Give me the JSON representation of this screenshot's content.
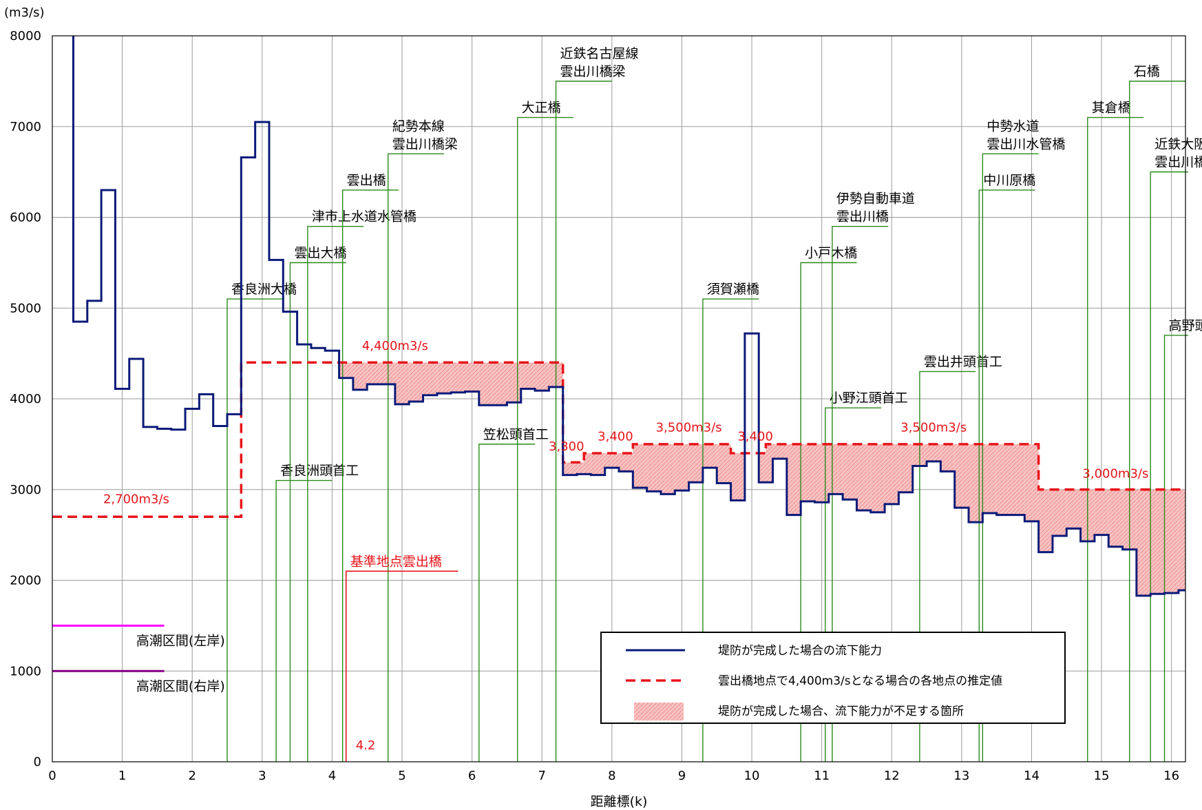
{
  "chart_data": {
    "type": "line",
    "ylabel": "(m3/s)",
    "xlabel": "距離標(k)",
    "xlim": [
      0,
      16.2
    ],
    "ylim": [
      0,
      8000
    ],
    "xticks": [
      "0",
      "1",
      "2",
      "3",
      "4",
      "5",
      "6",
      "7",
      "8",
      "9",
      "10",
      "11",
      "12",
      "13",
      "14",
      "15",
      "16"
    ],
    "yticks": [
      "0",
      "1000",
      "2000",
      "3000",
      "4000",
      "5000",
      "6000",
      "7000",
      "8000"
    ],
    "grid": true,
    "legend_position": "bottom-right",
    "legend": [
      {
        "label": "堤防が完成した場合の流下能力",
        "kind": "solid",
        "color": "#0a1a78"
      },
      {
        "label": "雲出橋地点で4,400m3/sとなる場合の各地点の推定値",
        "kind": "dashed",
        "color": "#e8141a"
      },
      {
        "label": "堤防が完成した場合、流下能力が不足する箇所",
        "kind": "fill",
        "color": "#f4a8a8"
      }
    ],
    "series": [
      {
        "name": "堤防が完成した場合の流下能力",
        "color": "#0a1a78",
        "points": [
          [
            0.3,
            8000
          ],
          [
            0.3,
            4850
          ],
          [
            0.5,
            4850
          ],
          [
            0.5,
            5080
          ],
          [
            0.7,
            5080
          ],
          [
            0.7,
            6300
          ],
          [
            0.9,
            6300
          ],
          [
            0.9,
            4110
          ],
          [
            1.1,
            4110
          ],
          [
            1.1,
            4440
          ],
          [
            1.3,
            4440
          ],
          [
            1.3,
            3690
          ],
          [
            1.5,
            3690
          ],
          [
            1.5,
            3670
          ],
          [
            1.7,
            3670
          ],
          [
            1.7,
            3660
          ],
          [
            1.9,
            3660
          ],
          [
            1.9,
            3890
          ],
          [
            2.1,
            3890
          ],
          [
            2.1,
            4050
          ],
          [
            2.3,
            4050
          ],
          [
            2.3,
            3700
          ],
          [
            2.5,
            3700
          ],
          [
            2.5,
            3830
          ],
          [
            2.7,
            3830
          ],
          [
            2.7,
            6660
          ],
          [
            2.9,
            6660
          ],
          [
            2.9,
            7050
          ],
          [
            3.1,
            7050
          ],
          [
            3.1,
            5530
          ],
          [
            3.3,
            5530
          ],
          [
            3.3,
            4960
          ],
          [
            3.5,
            4960
          ],
          [
            3.5,
            4600
          ],
          [
            3.7,
            4600
          ],
          [
            3.7,
            4560
          ],
          [
            3.9,
            4560
          ],
          [
            3.9,
            4530
          ],
          [
            4.1,
            4530
          ],
          [
            4.1,
            4230
          ],
          [
            4.3,
            4230
          ],
          [
            4.3,
            4100
          ],
          [
            4.5,
            4100
          ],
          [
            4.5,
            4160
          ],
          [
            4.7,
            4160
          ],
          [
            4.7,
            4160
          ],
          [
            4.9,
            4160
          ],
          [
            4.9,
            3940
          ],
          [
            5.1,
            3940
          ],
          [
            5.1,
            3970
          ],
          [
            5.3,
            3970
          ],
          [
            5.3,
            4040
          ],
          [
            5.5,
            4040
          ],
          [
            5.5,
            4060
          ],
          [
            5.7,
            4060
          ],
          [
            5.7,
            4070
          ],
          [
            5.9,
            4070
          ],
          [
            5.9,
            4080
          ],
          [
            6.1,
            4080
          ],
          [
            6.1,
            3930
          ],
          [
            6.3,
            3930
          ],
          [
            6.3,
            3930
          ],
          [
            6.5,
            3930
          ],
          [
            6.5,
            3960
          ],
          [
            6.7,
            3960
          ],
          [
            6.7,
            4110
          ],
          [
            6.9,
            4110
          ],
          [
            6.9,
            4090
          ],
          [
            7.1,
            4090
          ],
          [
            7.1,
            4130
          ],
          [
            7.3,
            4130
          ],
          [
            7.3,
            3160
          ],
          [
            7.5,
            3160
          ],
          [
            7.5,
            3170
          ],
          [
            7.7,
            3170
          ],
          [
            7.7,
            3160
          ],
          [
            7.9,
            3160
          ],
          [
            7.9,
            3240
          ],
          [
            8.1,
            3240
          ],
          [
            8.1,
            3200
          ],
          [
            8.3,
            3200
          ],
          [
            8.3,
            3020
          ],
          [
            8.5,
            3020
          ],
          [
            8.5,
            2980
          ],
          [
            8.7,
            2980
          ],
          [
            8.7,
            2950
          ],
          [
            8.9,
            2950
          ],
          [
            8.9,
            2990
          ],
          [
            9.1,
            2990
          ],
          [
            9.1,
            3080
          ],
          [
            9.3,
            3080
          ],
          [
            9.3,
            3240
          ],
          [
            9.5,
            3240
          ],
          [
            9.5,
            3070
          ],
          [
            9.7,
            3070
          ],
          [
            9.7,
            2880
          ],
          [
            9.9,
            2880
          ],
          [
            9.9,
            4720
          ],
          [
            10.1,
            4720
          ],
          [
            10.1,
            3080
          ],
          [
            10.3,
            3080
          ],
          [
            10.3,
            3340
          ],
          [
            10.5,
            3340
          ],
          [
            10.5,
            2720
          ],
          [
            10.7,
            2720
          ],
          [
            10.7,
            2870
          ],
          [
            10.9,
            2870
          ],
          [
            10.9,
            2860
          ],
          [
            11.1,
            2860
          ],
          [
            11.1,
            2950
          ],
          [
            11.3,
            2950
          ],
          [
            11.3,
            2890
          ],
          [
            11.5,
            2890
          ],
          [
            11.5,
            2770
          ],
          [
            11.7,
            2770
          ],
          [
            11.7,
            2750
          ],
          [
            11.9,
            2750
          ],
          [
            11.9,
            2840
          ],
          [
            12.1,
            2840
          ],
          [
            12.1,
            2970
          ],
          [
            12.3,
            2970
          ],
          [
            12.3,
            3260
          ],
          [
            12.5,
            3260
          ],
          [
            12.5,
            3310
          ],
          [
            12.7,
            3310
          ],
          [
            12.7,
            3200
          ],
          [
            12.9,
            3200
          ],
          [
            12.9,
            2800
          ],
          [
            13.1,
            2800
          ],
          [
            13.1,
            2640
          ],
          [
            13.3,
            2640
          ],
          [
            13.3,
            2740
          ],
          [
            13.5,
            2740
          ],
          [
            13.5,
            2720
          ],
          [
            13.7,
            2720
          ],
          [
            13.7,
            2720
          ],
          [
            13.9,
            2720
          ],
          [
            13.9,
            2650
          ],
          [
            14.1,
            2650
          ],
          [
            14.1,
            2310
          ],
          [
            14.3,
            2310
          ],
          [
            14.3,
            2490
          ],
          [
            14.5,
            2490
          ],
          [
            14.5,
            2570
          ],
          [
            14.7,
            2570
          ],
          [
            14.7,
            2430
          ],
          [
            14.9,
            2430
          ],
          [
            14.9,
            2500
          ],
          [
            15.1,
            2500
          ],
          [
            15.1,
            2370
          ],
          [
            15.3,
            2370
          ],
          [
            15.3,
            2340
          ],
          [
            15.5,
            2340
          ],
          [
            15.5,
            1830
          ],
          [
            15.7,
            1830
          ],
          [
            15.7,
            1850
          ],
          [
            15.9,
            1850
          ],
          [
            15.9,
            1860
          ],
          [
            16.1,
            1860
          ],
          [
            16.1,
            1890
          ],
          [
            16.2,
            1890
          ]
        ]
      },
      {
        "name": "雲出橋地点で4,400m3/sとなる場合の各地点の推定値",
        "color": "#e8141a",
        "points": [
          [
            0,
            2700
          ],
          [
            2.7,
            2700
          ],
          [
            2.7,
            4400
          ],
          [
            7.3,
            4400
          ],
          [
            7.3,
            3300
          ],
          [
            7.6,
            3300
          ],
          [
            7.6,
            3400
          ],
          [
            8.3,
            3400
          ],
          [
            8.3,
            3500
          ],
          [
            9.7,
            3500
          ],
          [
            9.7,
            3400
          ],
          [
            10.2,
            3400
          ],
          [
            10.2,
            3500
          ],
          [
            14.1,
            3500
          ],
          [
            14.1,
            3000
          ],
          [
            16.2,
            3000
          ]
        ]
      }
    ],
    "flow_annotations": [
      {
        "text": "2,700m3/s",
        "x": 1.2,
        "y": 2850
      },
      {
        "text": "4,400m3/s",
        "x": 4.9,
        "y": 4540
      },
      {
        "text": "3,300",
        "x": 7.35,
        "y": 3430
      },
      {
        "text": "3,400",
        "x": 8.05,
        "y": 3540
      },
      {
        "text": "3,500m3/s",
        "x": 9.1,
        "y": 3640
      },
      {
        "text": "3,400",
        "x": 10.05,
        "y": 3540
      },
      {
        "text": "3,500m3/s",
        "x": 12.6,
        "y": 3640
      },
      {
        "text": "3,000m3/s",
        "x": 15.2,
        "y": 3130
      }
    ],
    "structures": [
      {
        "lines": [
          "香良洲大橋"
        ],
        "x": 2.5,
        "y": 5100,
        "label_end": 3.3
      },
      {
        "lines": [
          "香良洲頭首工"
        ],
        "x": 3.2,
        "y": 3100,
        "label_end": 4.0
      },
      {
        "lines": [
          "雲出大橋"
        ],
        "x": 3.4,
        "y": 5500,
        "label_end": 4.2
      },
      {
        "lines": [
          "津市上水道水管橋"
        ],
        "x": 3.65,
        "y": 5900,
        "label_end": 4.45
      },
      {
        "lines": [
          "雲出橋"
        ],
        "x": 4.15,
        "y": 6300,
        "label_end": 4.95
      },
      {
        "lines": [
          "紀勢本線",
          "雲出川橋梁"
        ],
        "x": 4.8,
        "y": 6700,
        "label_end": 5.6
      },
      {
        "lines": [
          "笠松頭首工"
        ],
        "x": 6.1,
        "y": 3500,
        "label_end": 6.9
      },
      {
        "lines": [
          "大正橋"
        ],
        "x": 6.65,
        "y": 7100,
        "label_end": 7.45
      },
      {
        "lines": [
          "近鉄名古屋線",
          "雲出川橋梁"
        ],
        "x": 7.2,
        "y": 7500,
        "label_end": 8.0
      },
      {
        "lines": [
          "須賀瀬橋"
        ],
        "x": 9.3,
        "y": 5100,
        "label_end": 10.1
      },
      {
        "lines": [
          "小戸木橋"
        ],
        "x": 10.7,
        "y": 5500,
        "label_end": 11.5
      },
      {
        "lines": [
          "小野江頭首工"
        ],
        "x": 11.05,
        "y": 3900,
        "label_end": 11.85
      },
      {
        "lines": [
          "伊勢自動車道",
          "雲出川橋"
        ],
        "x": 11.15,
        "y": 5900,
        "label_end": 11.95
      },
      {
        "lines": [
          "雲出井頭首工"
        ],
        "x": 12.4,
        "y": 4300,
        "label_end": 13.2
      },
      {
        "lines": [
          "中川原橋"
        ],
        "x": 13.25,
        "y": 6300,
        "label_end": 14.05
      },
      {
        "lines": [
          "中勢水道",
          "雲出川水管橋"
        ],
        "x": 13.3,
        "y": 6700,
        "label_end": 14.1
      },
      {
        "lines": [
          "其倉橋"
        ],
        "x": 14.8,
        "y": 7100,
        "label_end": 15.6
      },
      {
        "lines": [
          "石橋"
        ],
        "x": 15.4,
        "y": 7500,
        "label_end": 16.2
      },
      {
        "lines": [
          "近鉄大阪線",
          "雲出川橋梁"
        ],
        "x": 15.7,
        "y": 6500,
        "label_end": 16.5
      },
      {
        "lines": [
          "高野頭首工"
        ],
        "x": 15.9,
        "y": 4700,
        "label_end": 16.7
      }
    ],
    "reference_point": {
      "label": "基準地点雲出橋",
      "x": 4.2,
      "y": 2100,
      "label_end": 5.8,
      "x_label": "4.2"
    },
    "high_tide_sections": [
      {
        "label": "高潮区間(左岸)",
        "y": 1500,
        "x_end": 1.6,
        "color": "#ff00ff"
      },
      {
        "label": "高潮区間(右岸)",
        "y": 1000,
        "x_end": 1.6,
        "color": "#800080"
      }
    ]
  }
}
